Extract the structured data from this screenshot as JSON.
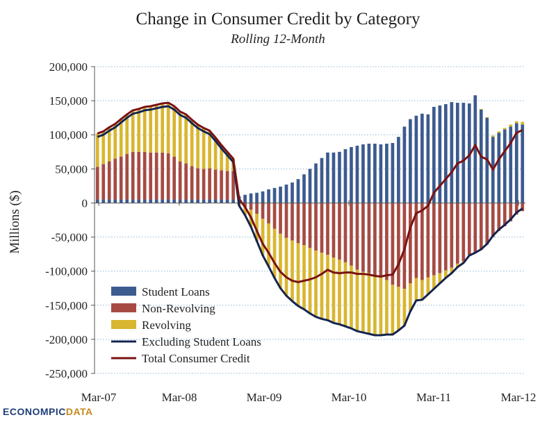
{
  "chart_data": {
    "type": "bar",
    "title": "Change in Consumer Credit by Category",
    "subtitle": "Rolling 12-Month",
    "xlabel": "",
    "ylabel": "Millions ($)",
    "ylim": [
      -250000,
      200000
    ],
    "yticks": [
      200000,
      150000,
      100000,
      50000,
      0,
      -50000,
      -100000,
      -150000,
      -200000,
      -250000
    ],
    "ytick_labels": [
      "200,000",
      "150,000",
      "100,000",
      "50,000",
      "0",
      "-50,000",
      "-100,000",
      "-150,000",
      "-200,000",
      "-250,000"
    ],
    "xtick_labels": [
      "Mar-07",
      "Mar-08",
      "Mar-09",
      "Mar-10",
      "Mar-11",
      "Mar-12"
    ],
    "stacked": true,
    "grid": "horizontal dotted",
    "legend_position": "bottom-left",
    "series": [
      {
        "name": "Student Loans",
        "kind": "bar",
        "color": "#3c5b8f",
        "values": [
          5000,
          5000,
          5000,
          5000,
          5000,
          5000,
          5000,
          5000,
          5000,
          5000,
          5000,
          5000,
          5000,
          5000,
          5000,
          5000,
          5000,
          5000,
          5000,
          5000,
          5000,
          5000,
          5000,
          5000,
          10000,
          12000,
          14000,
          15000,
          17000,
          20000,
          22000,
          24000,
          27000,
          30000,
          35000,
          42000,
          50000,
          58000,
          66000,
          74000,
          74000,
          75000,
          79000,
          82000,
          84000,
          86000,
          87000,
          87000,
          86000,
          87000,
          88000,
          97000,
          112000,
          123000,
          128000,
          131000,
          130000,
          141000,
          143000,
          145000,
          148000,
          147000,
          147000,
          146000,
          158000,
          137000,
          125000,
          97000,
          103000,
          108000,
          112000,
          117000,
          115000
        ]
      },
      {
        "name": "Non-Revolving",
        "kind": "bar",
        "color": "#a64b43",
        "values": [
          48000,
          52000,
          56000,
          60000,
          63000,
          67000,
          70000,
          70000,
          70000,
          69000,
          69000,
          69000,
          68000,
          63000,
          56000,
          53000,
          49000,
          46000,
          45000,
          46000,
          44000,
          43000,
          42000,
          42000,
          -2000,
          -6000,
          -10000,
          -16000,
          -23000,
          -30000,
          -38000,
          -45000,
          -51000,
          -55000,
          -59000,
          -62000,
          -66000,
          -70000,
          -73000,
          -76000,
          -80000,
          -83000,
          -87000,
          -92000,
          -98000,
          -101000,
          -103000,
          -106000,
          -109000,
          -113000,
          -120000,
          -123000,
          -126000,
          -118000,
          -110000,
          -113000,
          -109000,
          -106000,
          -103000,
          -99000,
          -95000,
          -89000,
          -85000,
          -76000,
          -73000,
          -69000,
          -61000,
          -50000,
          -41000,
          -34000,
          -27000,
          -17000,
          -12000
        ]
      },
      {
        "name": "Revolving",
        "kind": "bar",
        "color": "#d9b630",
        "values": [
          49000,
          48000,
          50000,
          51000,
          55000,
          58000,
          61000,
          63000,
          66000,
          68000,
          70000,
          72000,
          74000,
          74000,
          73000,
          72000,
          68000,
          64000,
          60000,
          55000,
          47000,
          37000,
          28000,
          18000,
          -2000,
          -12000,
          -25000,
          -40000,
          -54000,
          -63000,
          -72000,
          -80000,
          -85000,
          -89000,
          -92000,
          -94000,
          -96000,
          -97000,
          -97000,
          -96000,
          -96000,
          -95000,
          -94000,
          -92000,
          -90000,
          -89000,
          -89000,
          -88000,
          -85000,
          -80000,
          -73000,
          -64000,
          -54000,
          -41000,
          -33000,
          -29000,
          -25000,
          -20000,
          -15000,
          -11000,
          -8000,
          -5000,
          -3000,
          -1000,
          0,
          1000,
          1000,
          2000,
          2000,
          2000,
          3000,
          3000,
          4000
        ]
      },
      {
        "name": "Excluding Student Loans",
        "kind": "line",
        "color": "#14244e",
        "values": [
          97000,
          100000,
          106000,
          111000,
          118000,
          125000,
          131000,
          133000,
          136000,
          137000,
          139000,
          141000,
          142000,
          137000,
          129000,
          125000,
          117000,
          110000,
          105000,
          101000,
          91000,
          80000,
          70000,
          60000,
          -4000,
          -18000,
          -35000,
          -56000,
          -77000,
          -93000,
          -110000,
          -125000,
          -136000,
          -144000,
          -151000,
          -156000,
          -162000,
          -167000,
          -170000,
          -172000,
          -176000,
          -178000,
          -181000,
          -184000,
          -188000,
          -190000,
          -192000,
          -194000,
          -194000,
          -193000,
          -193000,
          -187000,
          -180000,
          -159000,
          -143000,
          -142000,
          -134000,
          -126000,
          -118000,
          -110000,
          -103000,
          -94000,
          -88000,
          -77000,
          -73000,
          -68000,
          -60000,
          -48000,
          -39000,
          -32000,
          -24000,
          -14000,
          -8000
        ]
      },
      {
        "name": "Total Consumer Credit",
        "kind": "line",
        "color": "#7a1212",
        "values": [
          102000,
          105000,
          111000,
          116000,
          123000,
          130000,
          136000,
          138000,
          141000,
          142000,
          144000,
          146000,
          147000,
          142000,
          134000,
          130000,
          122000,
          115000,
          110000,
          106000,
          96000,
          85000,
          75000,
          65000,
          6000,
          -6000,
          -21000,
          -41000,
          -60000,
          -73000,
          -88000,
          -101000,
          -109000,
          -114000,
          -116000,
          -114000,
          -112000,
          -109000,
          -104000,
          -98000,
          -102000,
          -103000,
          -102000,
          -102000,
          -104000,
          -104000,
          -105000,
          -107000,
          -108000,
          -106000,
          -105000,
          -90000,
          -68000,
          -36000,
          -15000,
          -11000,
          -4000,
          15000,
          25000,
          35000,
          45000,
          58000,
          62000,
          70000,
          85000,
          68000,
          64000,
          49000,
          64000,
          76000,
          88000,
          103000,
          107000
        ]
      }
    ]
  },
  "logo": {
    "part1": "ECONOMPIC",
    "part2": "DATA"
  }
}
